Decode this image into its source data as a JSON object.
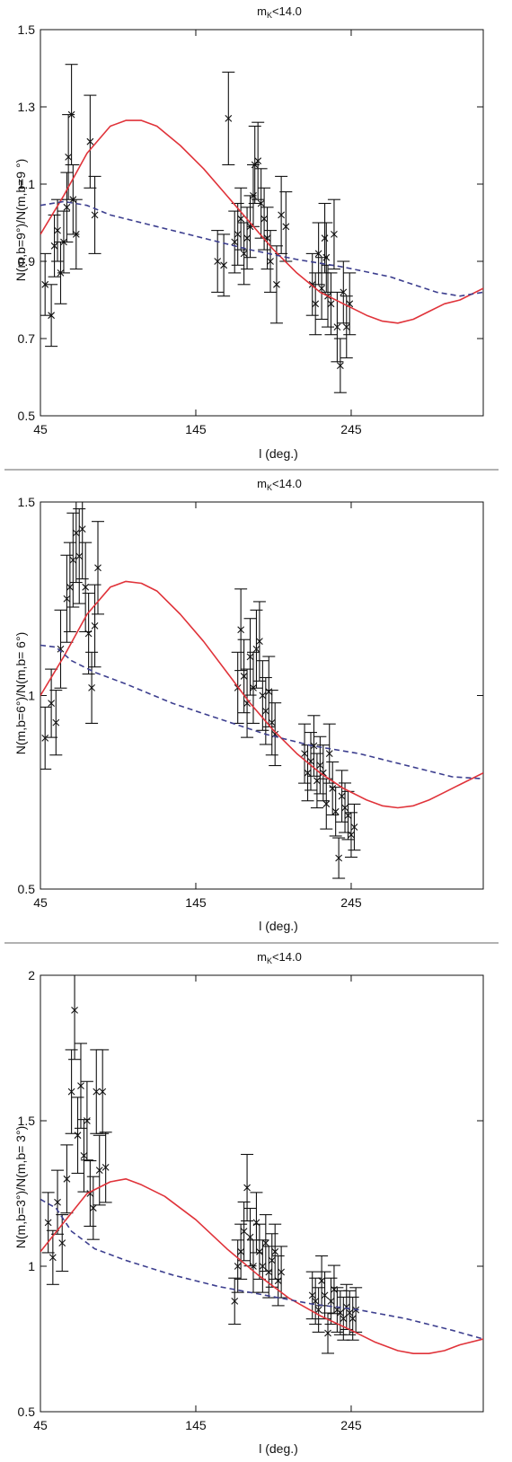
{
  "chart_data": [
    {
      "type": "scatter",
      "title": "m_K<14.0",
      "title_main": "m",
      "title_sub": "K",
      "title_rest": "<14.0",
      "xlabel": "l (deg.)",
      "ylabel": "N(m,b=9°)/N(m,b=9 °)",
      "xlim": [
        45,
        330
      ],
      "ylim": [
        0.5,
        1.5
      ],
      "xticks": [
        45,
        145,
        245
      ],
      "yticks": [
        0.5,
        0.7,
        0.9,
        1.1,
        1.3,
        1.5
      ],
      "colors": {
        "model_solid": "#e0333a",
        "model_dashed": "#3d3f8f",
        "points": "#111111"
      },
      "series": [
        {
          "kind": "errorbar-points",
          "x": [
            48,
            52,
            54,
            56,
            58,
            60,
            62,
            63,
            65,
            66,
            68,
            77,
            80,
            159,
            163,
            166,
            170,
            172,
            174,
            176,
            178,
            180,
            182,
            183,
            185,
            187,
            189,
            191,
            193,
            197,
            200,
            203,
            220,
            222,
            224,
            226,
            228,
            229,
            230,
            232,
            234,
            236,
            238,
            240,
            242,
            244
          ],
          "y": [
            0.84,
            0.76,
            0.94,
            0.98,
            0.87,
            0.95,
            1.04,
            1.17,
            1.28,
            1.06,
            0.97,
            1.21,
            1.02,
            0.9,
            0.89,
            1.27,
            0.95,
            0.97,
            1.01,
            0.92,
            0.96,
            0.99,
            1.07,
            1.15,
            1.16,
            1.05,
            1.01,
            0.96,
            0.9,
            0.84,
            1.02,
            0.99,
            0.84,
            0.79,
            0.92,
            0.83,
            0.96,
            0.91,
            0.81,
            0.79,
            0.97,
            0.73,
            0.63,
            0.82,
            0.73,
            0.79
          ],
          "yerr": [
            0.08,
            0.08,
            0.08,
            0.08,
            0.08,
            0.08,
            0.09,
            0.11,
            0.13,
            0.09,
            0.09,
            0.12,
            0.1,
            0.08,
            0.08,
            0.12,
            0.08,
            0.08,
            0.08,
            0.08,
            0.08,
            0.08,
            0.08,
            0.1,
            0.1,
            0.09,
            0.08,
            0.08,
            0.08,
            0.1,
            0.1,
            0.09,
            0.08,
            0.08,
            0.08,
            0.08,
            0.09,
            0.09,
            0.08,
            0.08,
            0.09,
            0.09,
            0.07,
            0.08,
            0.08,
            0.08
          ]
        },
        {
          "kind": "solid-line",
          "x": [
            45,
            60,
            75,
            90,
            100,
            110,
            120,
            135,
            150,
            165,
            180,
            195,
            210,
            225,
            240,
            255,
            265,
            275,
            285,
            295,
            305,
            315,
            330
          ],
          "y": [
            0.97,
            1.07,
            1.18,
            1.25,
            1.265,
            1.265,
            1.25,
            1.2,
            1.14,
            1.07,
            1.0,
            0.93,
            0.87,
            0.82,
            0.79,
            0.76,
            0.745,
            0.74,
            0.75,
            0.77,
            0.79,
            0.8,
            0.83
          ]
        },
        {
          "kind": "dashed-line",
          "x": [
            45,
            60,
            75,
            90,
            120,
            150,
            180,
            210,
            240,
            270,
            300,
            315,
            330
          ],
          "y": [
            1.045,
            1.055,
            1.045,
            1.02,
            0.99,
            0.96,
            0.93,
            0.905,
            0.885,
            0.86,
            0.82,
            0.81,
            0.82
          ]
        }
      ]
    },
    {
      "type": "scatter",
      "title": "m_K<14.0",
      "title_main": "m",
      "title_sub": "K",
      "title_rest": "<14.0",
      "xlabel": "l (deg.)",
      "ylabel": "N(m,b=6°)/N(m,b= 6°)",
      "xlim": [
        45,
        330
      ],
      "ylim": [
        0.5,
        1.5
      ],
      "xticks": [
        45,
        145,
        245
      ],
      "yticks": [
        0.5,
        1,
        1.5
      ],
      "colors": {
        "model_solid": "#e0333a",
        "model_dashed": "#3d3f8f",
        "points": "#111111"
      },
      "series": [
        {
          "kind": "errorbar-points",
          "x": [
            48,
            52,
            55,
            58,
            62,
            64,
            66,
            68,
            70,
            72,
            74,
            76,
            78,
            80,
            82,
            172,
            174,
            176,
            178,
            180,
            182,
            184,
            186,
            188,
            190,
            192,
            194,
            196,
            215,
            217,
            219,
            221,
            223,
            225,
            227,
            229,
            231,
            233,
            235,
            237,
            239,
            241,
            243,
            245,
            247
          ],
          "y": [
            0.89,
            0.98,
            0.93,
            1.12,
            1.25,
            1.28,
            1.35,
            1.42,
            1.36,
            1.43,
            1.28,
            1.16,
            1.02,
            1.18,
            1.33,
            1.02,
            1.17,
            1.05,
            0.98,
            1.1,
            1.02,
            1.12,
            1.14,
            1.0,
            0.96,
            1.01,
            0.93,
            0.9,
            0.85,
            0.8,
            0.83,
            0.87,
            0.78,
            0.82,
            0.8,
            0.72,
            0.85,
            0.76,
            0.7,
            0.58,
            0.74,
            0.71,
            0.69,
            0.64,
            0.66
          ]
        },
        {
          "kind": "solid-line",
          "x": [
            45,
            60,
            75,
            90,
            100,
            110,
            120,
            135,
            150,
            165,
            180,
            195,
            210,
            225,
            240,
            255,
            265,
            275,
            285,
            295,
            305,
            315,
            330
          ],
          "y": [
            1.0,
            1.1,
            1.21,
            1.28,
            1.295,
            1.29,
            1.27,
            1.21,
            1.14,
            1.06,
            0.98,
            0.91,
            0.85,
            0.8,
            0.76,
            0.73,
            0.715,
            0.71,
            0.715,
            0.73,
            0.75,
            0.77,
            0.8
          ]
        },
        {
          "kind": "dashed-line",
          "x": [
            45,
            55,
            65,
            80,
            100,
            130,
            160,
            190,
            220,
            250,
            280,
            310,
            330
          ],
          "y": [
            1.13,
            1.125,
            1.09,
            1.06,
            1.03,
            0.98,
            0.94,
            0.9,
            0.87,
            0.85,
            0.82,
            0.79,
            0.785
          ]
        }
      ]
    },
    {
      "type": "scatter",
      "title": "m_K<14.0",
      "title_main": "m",
      "title_sub": "K",
      "title_rest": "<14.0",
      "xlabel": "l (deg.)",
      "ylabel": "N(m,b=3°)/N(m,b= 3°)",
      "xlim": [
        45,
        330
      ],
      "ylim": [
        0.5,
        2.0
      ],
      "xticks": [
        45,
        145,
        245
      ],
      "yticks": [
        0.5,
        1,
        1.5,
        2
      ],
      "colors": {
        "model_solid": "#e0333a",
        "model_dashed": "#3d3f8f",
        "points": "#111111"
      },
      "series": [
        {
          "kind": "errorbar-points",
          "x": [
            50,
            53,
            56,
            59,
            62,
            65,
            67,
            69,
            71,
            73,
            75,
            77,
            79,
            81,
            83,
            85,
            87,
            170,
            172,
            174,
            176,
            178,
            180,
            182,
            184,
            186,
            188,
            190,
            192,
            194,
            196,
            198,
            200,
            220,
            222,
            224,
            226,
            228,
            230,
            232,
            234,
            236,
            238,
            240,
            242,
            244,
            246,
            248
          ],
          "y": [
            1.15,
            1.03,
            1.22,
            1.08,
            1.3,
            1.6,
            1.88,
            1.45,
            1.62,
            1.38,
            1.5,
            1.25,
            1.2,
            1.6,
            1.33,
            1.6,
            1.34,
            0.88,
            1.0,
            1.05,
            1.12,
            1.27,
            1.1,
            1.0,
            1.15,
            1.05,
            1.0,
            1.08,
            0.98,
            1.02,
            1.05,
            0.95,
            0.98,
            0.9,
            0.88,
            0.85,
            0.95,
            0.9,
            0.77,
            0.88,
            0.92,
            0.85,
            0.84,
            0.82,
            0.86,
            0.84,
            0.82,
            0.85
          ]
        },
        {
          "kind": "solid-line",
          "x": [
            45,
            60,
            75,
            90,
            100,
            110,
            125,
            145,
            165,
            185,
            205,
            225,
            245,
            260,
            275,
            285,
            295,
            305,
            315,
            330
          ],
          "y": [
            1.05,
            1.15,
            1.25,
            1.29,
            1.3,
            1.28,
            1.24,
            1.16,
            1.06,
            0.97,
            0.89,
            0.83,
            0.78,
            0.74,
            0.71,
            0.7,
            0.7,
            0.71,
            0.73,
            0.75
          ]
        },
        {
          "kind": "dashed-line",
          "x": [
            45,
            55,
            65,
            80,
            100,
            130,
            160,
            190,
            220,
            250,
            280,
            310,
            330
          ],
          "y": [
            1.23,
            1.2,
            1.12,
            1.06,
            1.02,
            0.97,
            0.93,
            0.9,
            0.87,
            0.85,
            0.82,
            0.78,
            0.75
          ]
        }
      ]
    }
  ]
}
